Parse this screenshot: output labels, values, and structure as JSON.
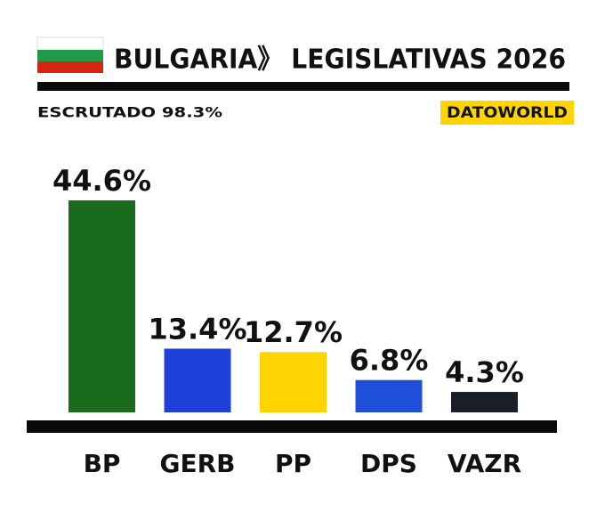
{
  "chart_data": {
    "type": "bar",
    "title": "BULGARIA》 LEGISLATIVAS 2026",
    "subtitle": "ESCRUTADO 98.3%",
    "source": "DATOWORLD",
    "categories": [
      "BP",
      "GERB",
      "PP",
      "DPS",
      "VAZR"
    ],
    "values": [
      44.6,
      13.4,
      12.7,
      6.8,
      4.3
    ],
    "value_labels": [
      "44.6%",
      "13.4%",
      "12.7%",
      "6.8%",
      "4.3%"
    ],
    "colors": [
      "#1b6b1e",
      "#1e3fd8",
      "#ffd400",
      "#1f4fd8",
      "#1a1e28"
    ]
  }
}
